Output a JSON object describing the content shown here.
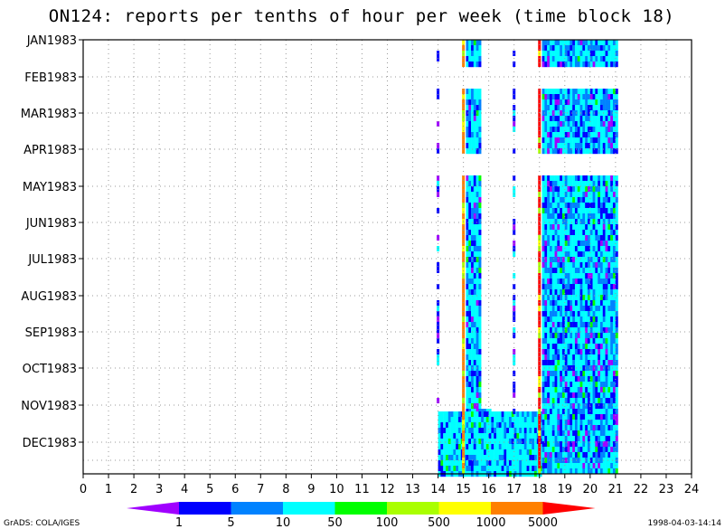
{
  "chart_data": {
    "type": "heatmap",
    "title": "ON124: reports per tenths of hour per week (time block 18)",
    "x_ticks": [
      "0",
      "1",
      "2",
      "3",
      "4",
      "5",
      "6",
      "7",
      "8",
      "9",
      "10",
      "11",
      "12",
      "13",
      "14",
      "15",
      "16",
      "17",
      "18",
      "19",
      "20",
      "21",
      "22",
      "23",
      "24"
    ],
    "xlim": [
      0,
      24
    ],
    "y_ticks": [
      "JAN1983",
      "FEB1983",
      "MAR1983",
      "APR1983",
      "MAY1983",
      "JUN1983",
      "JUL1983",
      "AUG1983",
      "SEP1983",
      "OCT1983",
      "NOV1983",
      "DEC1983"
    ],
    "grid": true,
    "colorbar": {
      "labels": [
        "1",
        "5",
        "10",
        "50",
        "100",
        "500",
        "1000",
        "5000"
      ],
      "colors": [
        "#a000ff",
        "#0000ff",
        "#0082ff",
        "#00ffff",
        "#00ff00",
        "#aaff00",
        "#ffff00",
        "#ff8000",
        "#ff0000"
      ]
    },
    "data_columns": [
      {
        "hour": 14.0,
        "value_class": "1-5",
        "note": "sparse reports"
      },
      {
        "hour": 15.0,
        "value_class": "500-5000"
      },
      {
        "hour": 15.1,
        "value_class": "5-100",
        "span_to": 16.0
      },
      {
        "hour": 17.0,
        "value_class": "1-10",
        "note": "sparse reports"
      },
      {
        "hour": 18.0,
        "value_class": "1000-5000"
      },
      {
        "hour": 18.1,
        "value_class": "5-50",
        "span_to": 21.0
      }
    ]
  },
  "footer": {
    "left": "GrADS: COLA/IGES",
    "right": "1998-04-03-14:14"
  }
}
